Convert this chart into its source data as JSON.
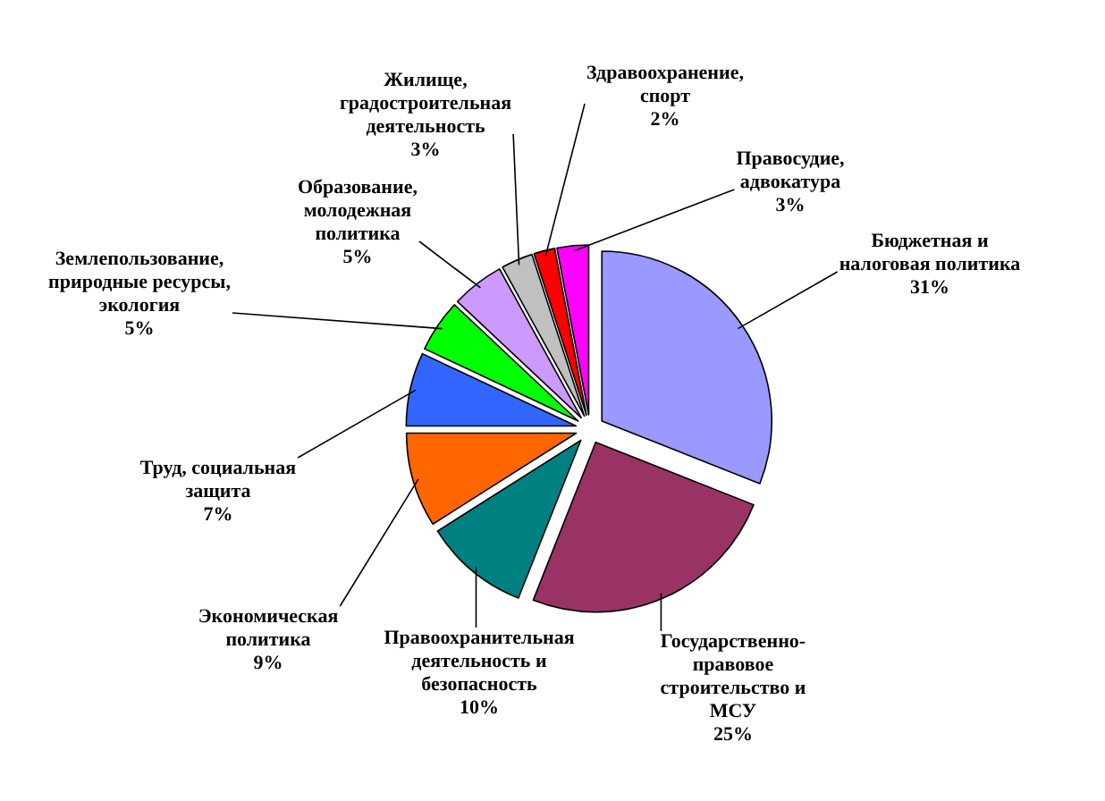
{
  "chart_data": {
    "type": "pie",
    "categories": [
      "Бюджетная и налоговая политика",
      "Государственно-правовое строительство и МСУ",
      "Правоохранительная деятельность и безопасность",
      "Экономическая политика",
      "Труд, социальная защита",
      "Землепользование, природные ресурсы, экология",
      "Образование, молодежная политика",
      "Жилище, градостроительная деятельность",
      "Здравоохранение, спорт",
      "Правосудие, адвокатура"
    ],
    "values": [
      31,
      25,
      10,
      9,
      7,
      5,
      5,
      3,
      2,
      3
    ],
    "colors": [
      "#9999ff",
      "#993366",
      "#008080",
      "#ff6600",
      "#3366ff",
      "#00ff00",
      "#cc99ff",
      "#c0c0c0",
      "#ff0000",
      "#ff00ff"
    ],
    "value_labels": [
      "31%",
      "25%",
      "10%",
      "9%",
      "7%",
      "5%",
      "5%",
      "3%",
      "2%",
      "3%"
    ]
  }
}
